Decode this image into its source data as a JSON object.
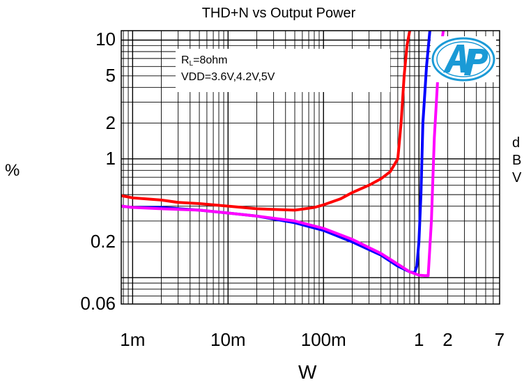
{
  "chart_data": {
    "type": "line",
    "title": "THD+N vs Output Power",
    "xlabel": "W",
    "ylabel": "%",
    "ylabel_right": [
      "d",
      "B",
      "V"
    ],
    "xscale": "log",
    "yscale": "log",
    "xlim": [
      0.00076,
      7.0
    ],
    "ylim": [
      0.06,
      12
    ],
    "x_ticks": [
      {
        "value": 0.001,
        "label": "1m"
      },
      {
        "value": 0.01,
        "label": "10m"
      },
      {
        "value": 0.1,
        "label": "100m"
      },
      {
        "value": 1,
        "label": "1"
      },
      {
        "value": 2,
        "label": "2"
      },
      {
        "value": 7,
        "label": "7"
      }
    ],
    "y_ticks": [
      {
        "value": 0.06,
        "label": "0.06"
      },
      {
        "value": 0.2,
        "label": "0.2"
      },
      {
        "value": 1,
        "label": "1"
      },
      {
        "value": 2,
        "label": "2"
      },
      {
        "value": 5,
        "label": "5"
      },
      {
        "value": 10,
        "label": "10"
      }
    ],
    "legend_text": [
      "R",
      "L",
      "=8ohm",
      "VDD=3.6V,4.2V,5V"
    ],
    "grid": true,
    "series": [
      {
        "color": "#ff0000",
        "x": [
          0.00075,
          0.001,
          0.002,
          0.003,
          0.005,
          0.01,
          0.02,
          0.05,
          0.08,
          0.1,
          0.15,
          0.2,
          0.3,
          0.4,
          0.5,
          0.6,
          0.65,
          0.7,
          0.75,
          0.8
        ],
        "y": [
          0.49,
          0.47,
          0.45,
          0.43,
          0.42,
          0.4,
          0.38,
          0.37,
          0.39,
          0.41,
          0.46,
          0.52,
          0.6,
          0.68,
          0.78,
          1.0,
          2.0,
          5.0,
          9.0,
          12.0
        ]
      },
      {
        "color": "#0000ff",
        "x": [
          0.00075,
          0.001,
          0.002,
          0.005,
          0.01,
          0.02,
          0.05,
          0.1,
          0.2,
          0.4,
          0.6,
          0.8,
          0.9,
          0.95,
          1.0,
          1.05,
          1.1,
          1.2,
          1.3
        ],
        "y": [
          0.4,
          0.39,
          0.39,
          0.37,
          0.35,
          0.33,
          0.29,
          0.25,
          0.2,
          0.155,
          0.125,
          0.112,
          0.11,
          0.125,
          0.2,
          0.5,
          2.0,
          6.0,
          12.0
        ]
      },
      {
        "color": "#ff00ff",
        "x": [
          0.00075,
          0.001,
          0.002,
          0.005,
          0.01,
          0.02,
          0.05,
          0.1,
          0.2,
          0.4,
          0.6,
          0.8,
          1.0,
          1.15,
          1.25,
          1.35,
          1.45,
          1.6,
          1.8
        ],
        "y": [
          0.4,
          0.39,
          0.38,
          0.37,
          0.35,
          0.33,
          0.3,
          0.26,
          0.21,
          0.16,
          0.13,
          0.112,
          0.105,
          0.104,
          0.104,
          0.3,
          1.5,
          6.0,
          12.0
        ]
      }
    ]
  },
  "legend": {
    "line1_main": "R",
    "line1_sub": "L",
    "line1_rest": "=8ohm",
    "line2": "VDD=3.6V,4.2V,5V"
  },
  "colors": {
    "logo": "#1a9ad6"
  }
}
